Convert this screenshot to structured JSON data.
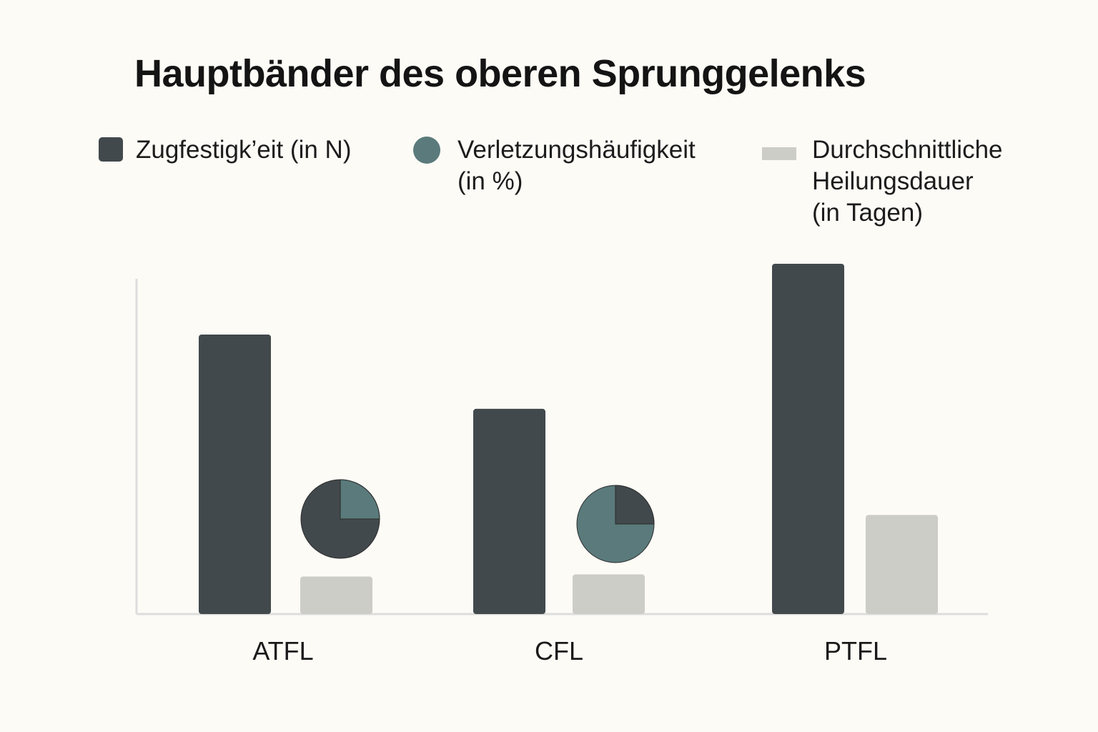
{
  "colors": {
    "background": "#fcfbf6",
    "strength": "#42494c",
    "injury": "#5a7a7b",
    "healing": "#cdcdc8",
    "axis": "#dddddd"
  },
  "legend": [
    {
      "label": "Zugfestigk’eit (in N)",
      "shape": "square-swatch",
      "color_key": "strength"
    },
    {
      "label": "Verletzungshäufigkeit\n(in %)",
      "shape": "circle-swatch",
      "color_key": "injury"
    },
    {
      "label": "Durchschnittliche\nHeilungsdauer\n(in Tagen)",
      "shape": "flat-swatch",
      "color_key": "healing"
    }
  ],
  "chart_data": {
    "type": "bar",
    "title": "Hauptbänder des oberen Sprunggelenks",
    "categories": [
      "ATFL",
      "CFL",
      "PTFL"
    ],
    "series": [
      {
        "name": "Zugfestigk’eit (in N)",
        "values": [
          395,
          290,
          495
        ],
        "mark": "bar"
      },
      {
        "name": "Verletzungshäufigkeit (in %)",
        "values": [
          25,
          25,
          null
        ],
        "mark": "pie",
        "note": "Pie highlights 25% sector"
      },
      {
        "name": "Durchschnittliche Heilungsdauer (in Tagen)",
        "values": [
          53,
          56,
          140
        ],
        "mark": "bar"
      }
    ],
    "pies": [
      {
        "category": "ATFL",
        "highlight_percent": 25,
        "fill_color_key": "strength",
        "highlight_color_key": "injury"
      },
      {
        "category": "CFL",
        "highlight_percent": 25,
        "fill_color_key": "injury",
        "highlight_color_key": "strength"
      }
    ],
    "ylim": [
      0,
      500
    ],
    "xlabel": "",
    "ylabel": "",
    "grid": false,
    "legend_position": "top"
  }
}
